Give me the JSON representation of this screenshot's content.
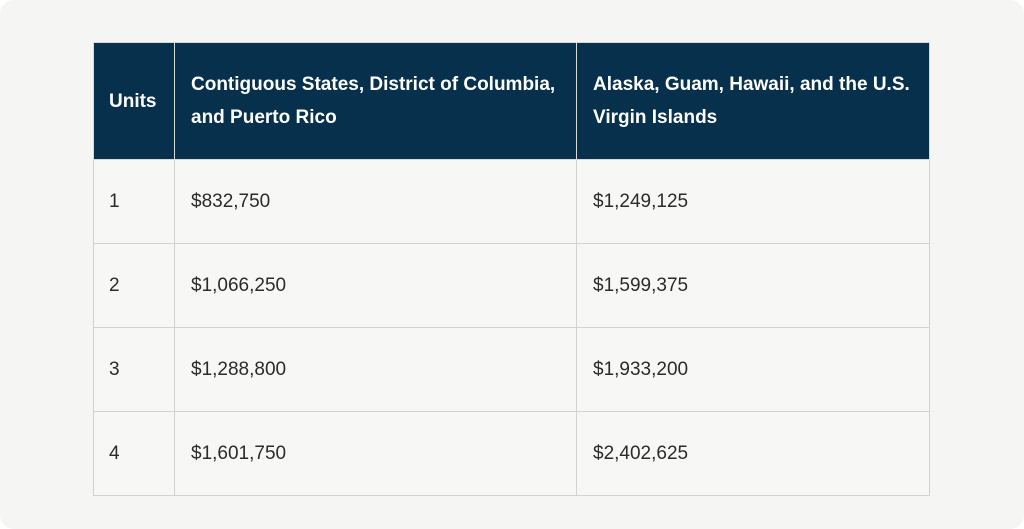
{
  "table": {
    "headers": [
      "Units",
      "Contiguous States, District of Columbia, and Puerto Rico",
      "Alaska, Guam, Hawaii, and the U.S. Virgin Islands"
    ],
    "rows": [
      [
        "1",
        "$832,750",
        "$1,249,125"
      ],
      [
        "2",
        "$1,066,250",
        "$1,599,375"
      ],
      [
        "3",
        "$1,288,800",
        "$1,933,200"
      ],
      [
        "4",
        "$1,601,750",
        "$2,402,625"
      ]
    ]
  },
  "colors": {
    "header_background": "#07304d",
    "header_text": "#ffffff",
    "body_background": "#f7f7f6",
    "border": "#d2d2d2"
  }
}
